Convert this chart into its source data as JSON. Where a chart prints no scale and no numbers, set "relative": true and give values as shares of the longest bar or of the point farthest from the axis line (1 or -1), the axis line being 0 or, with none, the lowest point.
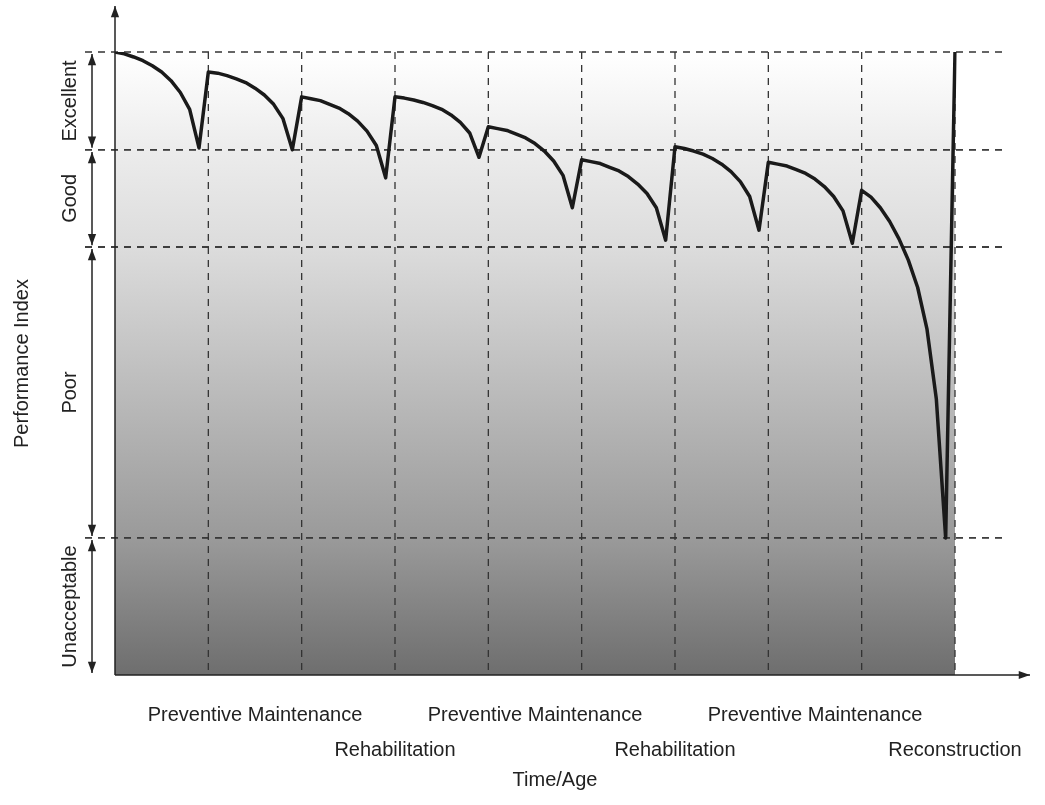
{
  "chart_data": {
    "type": "line",
    "xlabel": "Time/Age",
    "ylabel": "Performance Index",
    "relative": true,
    "grid": "x",
    "color": "#1a1a1a",
    "categories": [
      null,
      null,
      null,
      null,
      null,
      null,
      null,
      null,
      null,
      null,
      null,
      null,
      null,
      null,
      null,
      null,
      null,
      null,
      null,
      null,
      null,
      null,
      null,
      null,
      null,
      null,
      null,
      null,
      null,
      null,
      null,
      null,
      null,
      null,
      null,
      null,
      null,
      null,
      null,
      null,
      null,
      null,
      null,
      null,
      null,
      null,
      null,
      null,
      null,
      null,
      null,
      null,
      null,
      null,
      null,
      null,
      null,
      null,
      null,
      null,
      null,
      null,
      null,
      null,
      null,
      null,
      null,
      null,
      null,
      null,
      null,
      null,
      null,
      null,
      null,
      null,
      null,
      null,
      null,
      null,
      null,
      null,
      null,
      null,
      null,
      null,
      null,
      null,
      null,
      null,
      null
    ],
    "values": [
      1,
      0.997,
      0.992,
      0.986,
      0.978,
      0.968,
      0.954,
      0.935,
      0.908,
      0.846,
      0.968,
      0.966,
      0.962,
      0.957,
      0.951,
      0.942,
      0.931,
      0.916,
      0.893,
      0.843,
      0.928,
      0.925,
      0.922,
      0.916,
      0.91,
      0.901,
      0.889,
      0.873,
      0.85,
      0.798,
      0.928,
      0.926,
      0.923,
      0.919,
      0.914,
      0.908,
      0.899,
      0.887,
      0.87,
      0.831,
      0.88,
      0.877,
      0.874,
      0.868,
      0.862,
      0.853,
      0.841,
      0.825,
      0.802,
      0.75,
      0.827,
      0.824,
      0.821,
      0.815,
      0.809,
      0.8,
      0.788,
      0.773,
      0.75,
      0.698,
      0.848,
      0.845,
      0.841,
      0.836,
      0.829,
      0.82,
      0.808,
      0.792,
      0.768,
      0.714,
      0.823,
      0.82,
      0.817,
      0.811,
      0.805,
      0.796,
      0.784,
      0.768,
      0.745,
      0.693,
      0.778,
      0.767,
      0.75,
      0.728,
      0.7,
      0.666,
      0.622,
      0.555,
      0.443,
      0.22,
      1
    ],
    "bands": [
      {
        "axis": "y",
        "from": 0.843,
        "to": 1,
        "label": "Excellent",
        "color": "#ececec"
      },
      {
        "axis": "y",
        "from": 0.687,
        "to": 0.843,
        "label": "Good",
        "color": "#dcdcdc"
      },
      {
        "axis": "y",
        "from": 0.22,
        "to": 0.687,
        "label": "Poor",
        "color": "#9a9a9a"
      },
      {
        "axis": "y",
        "from": 0,
        "to": 0.22,
        "label": "Unacceptable",
        "color": "#6e6e6e"
      }
    ],
    "annotations": [
      "Preventive Maintenance",
      "Preventive Maintenance",
      "Preventive Maintenance",
      "Rehabilitation",
      "Rehabilitation",
      "Reconstruction"
    ]
  }
}
